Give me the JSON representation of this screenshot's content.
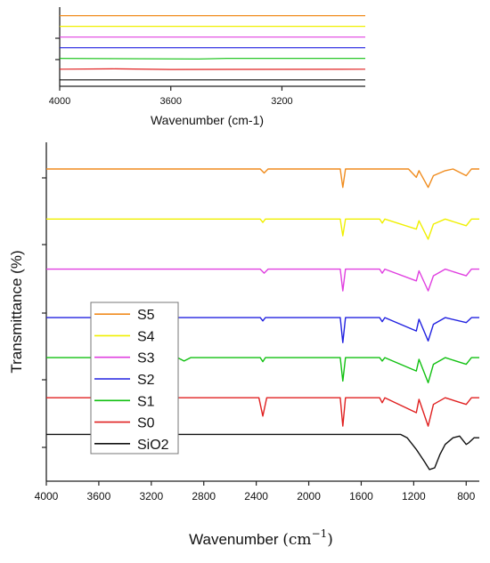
{
  "chart_data": [
    {
      "type": "line",
      "title": "",
      "xlabel": "Wavenumber (cm-1)",
      "ylabel": "",
      "xlim": [
        4000,
        2900
      ],
      "x_ticks": [
        4000,
        3600,
        3200
      ],
      "x_tick_labels": [
        "4000",
        "3600",
        "3200"
      ],
      "reversed_x": true,
      "y_ticks_unlabeled": 2,
      "legend": "none",
      "grid": false,
      "series": [
        {
          "color": "#f08c1e",
          "offset": 6.0,
          "points": [
            [
              4000,
              0.0
            ],
            [
              3000,
              0.0
            ],
            [
              2900,
              0.0
            ]
          ]
        },
        {
          "color": "#f0f000",
          "offset": 5.0,
          "points": [
            [
              4000,
              0.0
            ],
            [
              2900,
              0.0
            ]
          ]
        },
        {
          "color": "#e040e0",
          "offset": 4.0,
          "points": [
            [
              4000,
              0.0
            ],
            [
              2900,
              0.0
            ]
          ]
        },
        {
          "color": "#2020e0",
          "offset": 3.0,
          "points": [
            [
              4000,
              0.0
            ],
            [
              2900,
              0.0
            ]
          ]
        },
        {
          "color": "#10c010",
          "offset": 2.0,
          "points": [
            [
              4000,
              0.0
            ],
            [
              3500,
              -0.05
            ],
            [
              3400,
              0.0
            ],
            [
              2900,
              0.0
            ]
          ]
        },
        {
          "color": "#e02020",
          "offset": 1.0,
          "points": [
            [
              4000,
              0.0
            ],
            [
              3800,
              0.03
            ],
            [
              3600,
              -0.03
            ],
            [
              2900,
              0.0
            ]
          ]
        },
        {
          "color": "#111111",
          "offset": 0.0,
          "points": [
            [
              4000,
              0.0
            ],
            [
              2900,
              0.0
            ]
          ]
        }
      ]
    },
    {
      "type": "line",
      "title": "",
      "xlabel": "Wavenumber",
      "xlabel_unit_base": "(cm",
      "xlabel_unit_exp": "−1",
      "xlabel_unit_close": ")",
      "ylabel": "Transmittance (%)",
      "xlim": [
        4000,
        700
      ],
      "x_ticks": [
        4000,
        3600,
        3200,
        2800,
        2400,
        2000,
        1600,
        1200,
        800
      ],
      "x_tick_labels": [
        "4000",
        "3600",
        "3200",
        "2800",
        "2400",
        "2000",
        "1600",
        "1200",
        "800"
      ],
      "reversed_x": true,
      "y_ticks_unlabeled": 5,
      "legend": "left-bottom",
      "grid": false,
      "series": [
        {
          "name": "S5",
          "color": "#f08c1e",
          "offset": 7.1,
          "points": [
            [
              4000,
              0
            ],
            [
              2370,
              0
            ],
            [
              2340,
              -0.12
            ],
            [
              2310,
              0
            ],
            [
              1760,
              0
            ],
            [
              1740,
              -0.55
            ],
            [
              1720,
              0
            ],
            [
              1240,
              0
            ],
            [
              1180,
              -0.25
            ],
            [
              1160,
              -0.05
            ],
            [
              1090,
              -0.55
            ],
            [
              1050,
              -0.2
            ],
            [
              960,
              -0.05
            ],
            [
              900,
              0
            ],
            [
              800,
              -0.2
            ],
            [
              760,
              0
            ],
            [
              700,
              0
            ]
          ]
        },
        {
          "name": "S4",
          "color": "#f0f000",
          "offset": 5.6,
          "points": [
            [
              4000,
              0
            ],
            [
              2370,
              0
            ],
            [
              2350,
              -0.1
            ],
            [
              2330,
              0
            ],
            [
              1760,
              0
            ],
            [
              1740,
              -0.5
            ],
            [
              1720,
              0
            ],
            [
              1460,
              0
            ],
            [
              1440,
              -0.12
            ],
            [
              1420,
              0
            ],
            [
              1180,
              -0.3
            ],
            [
              1160,
              -0.05
            ],
            [
              1090,
              -0.6
            ],
            [
              1050,
              -0.15
            ],
            [
              960,
              0
            ],
            [
              800,
              -0.2
            ],
            [
              760,
              0
            ],
            [
              700,
              0
            ]
          ]
        },
        {
          "name": "S3",
          "color": "#e040e0",
          "offset": 4.1,
          "points": [
            [
              4000,
              0
            ],
            [
              2370,
              0
            ],
            [
              2340,
              -0.12
            ],
            [
              2310,
              0
            ],
            [
              1760,
              0
            ],
            [
              1740,
              -0.65
            ],
            [
              1720,
              0
            ],
            [
              1460,
              0
            ],
            [
              1440,
              -0.12
            ],
            [
              1420,
              0
            ],
            [
              1180,
              -0.35
            ],
            [
              1160,
              -0.05
            ],
            [
              1090,
              -0.65
            ],
            [
              1050,
              -0.2
            ],
            [
              960,
              0
            ],
            [
              800,
              -0.2
            ],
            [
              760,
              0
            ],
            [
              700,
              0
            ]
          ]
        },
        {
          "name": "S2",
          "color": "#2020e0",
          "offset": 2.65,
          "points": [
            [
              4000,
              0
            ],
            [
              2370,
              0
            ],
            [
              2350,
              -0.1
            ],
            [
              2330,
              0
            ],
            [
              1760,
              0
            ],
            [
              1740,
              -0.75
            ],
            [
              1720,
              0
            ],
            [
              1460,
              0
            ],
            [
              1440,
              -0.12
            ],
            [
              1420,
              0
            ],
            [
              1180,
              -0.4
            ],
            [
              1160,
              -0.05
            ],
            [
              1090,
              -0.7
            ],
            [
              1050,
              -0.2
            ],
            [
              960,
              0
            ],
            [
              800,
              -0.15
            ],
            [
              760,
              0
            ],
            [
              700,
              0
            ]
          ]
        },
        {
          "name": "S1",
          "color": "#10c010",
          "offset": 1.45,
          "points": [
            [
              4000,
              0
            ],
            [
              3000,
              0
            ],
            [
              2950,
              -0.1
            ],
            [
              2900,
              0
            ],
            [
              2370,
              0
            ],
            [
              2350,
              -0.12
            ],
            [
              2330,
              0
            ],
            [
              1760,
              0
            ],
            [
              1740,
              -0.7
            ],
            [
              1720,
              0
            ],
            [
              1460,
              0
            ],
            [
              1440,
              -0.1
            ],
            [
              1420,
              0
            ],
            [
              1180,
              -0.4
            ],
            [
              1160,
              -0.05
            ],
            [
              1090,
              -0.75
            ],
            [
              1050,
              -0.2
            ],
            [
              960,
              0
            ],
            [
              800,
              -0.2
            ],
            [
              760,
              0
            ],
            [
              700,
              0
            ]
          ]
        },
        {
          "name": "S0",
          "color": "#e02020",
          "offset": 0.25,
          "points": [
            [
              4000,
              0
            ],
            [
              2380,
              0
            ],
            [
              2350,
              -0.55
            ],
            [
              2320,
              0
            ],
            [
              1760,
              0
            ],
            [
              1740,
              -0.85
            ],
            [
              1720,
              0
            ],
            [
              1460,
              0
            ],
            [
              1440,
              -0.15
            ],
            [
              1420,
              0
            ],
            [
              1180,
              -0.45
            ],
            [
              1160,
              -0.05
            ],
            [
              1090,
              -0.85
            ],
            [
              1050,
              -0.2
            ],
            [
              960,
              0
            ],
            [
              800,
              -0.2
            ],
            [
              760,
              0
            ],
            [
              700,
              0
            ]
          ]
        },
        {
          "name": "SiO2",
          "color": "#111111",
          "offset": -0.85,
          "points": [
            [
              4000,
              0
            ],
            [
              1300,
              0
            ],
            [
              1250,
              -0.1
            ],
            [
              1180,
              -0.45
            ],
            [
              1120,
              -0.8
            ],
            [
              1080,
              -1.05
            ],
            [
              1040,
              -1.0
            ],
            [
              1000,
              -0.6
            ],
            [
              960,
              -0.3
            ],
            [
              900,
              -0.1
            ],
            [
              850,
              -0.05
            ],
            [
              800,
              -0.3
            ],
            [
              780,
              -0.25
            ],
            [
              740,
              -0.1
            ],
            [
              700,
              -0.1
            ]
          ]
        }
      ]
    }
  ]
}
